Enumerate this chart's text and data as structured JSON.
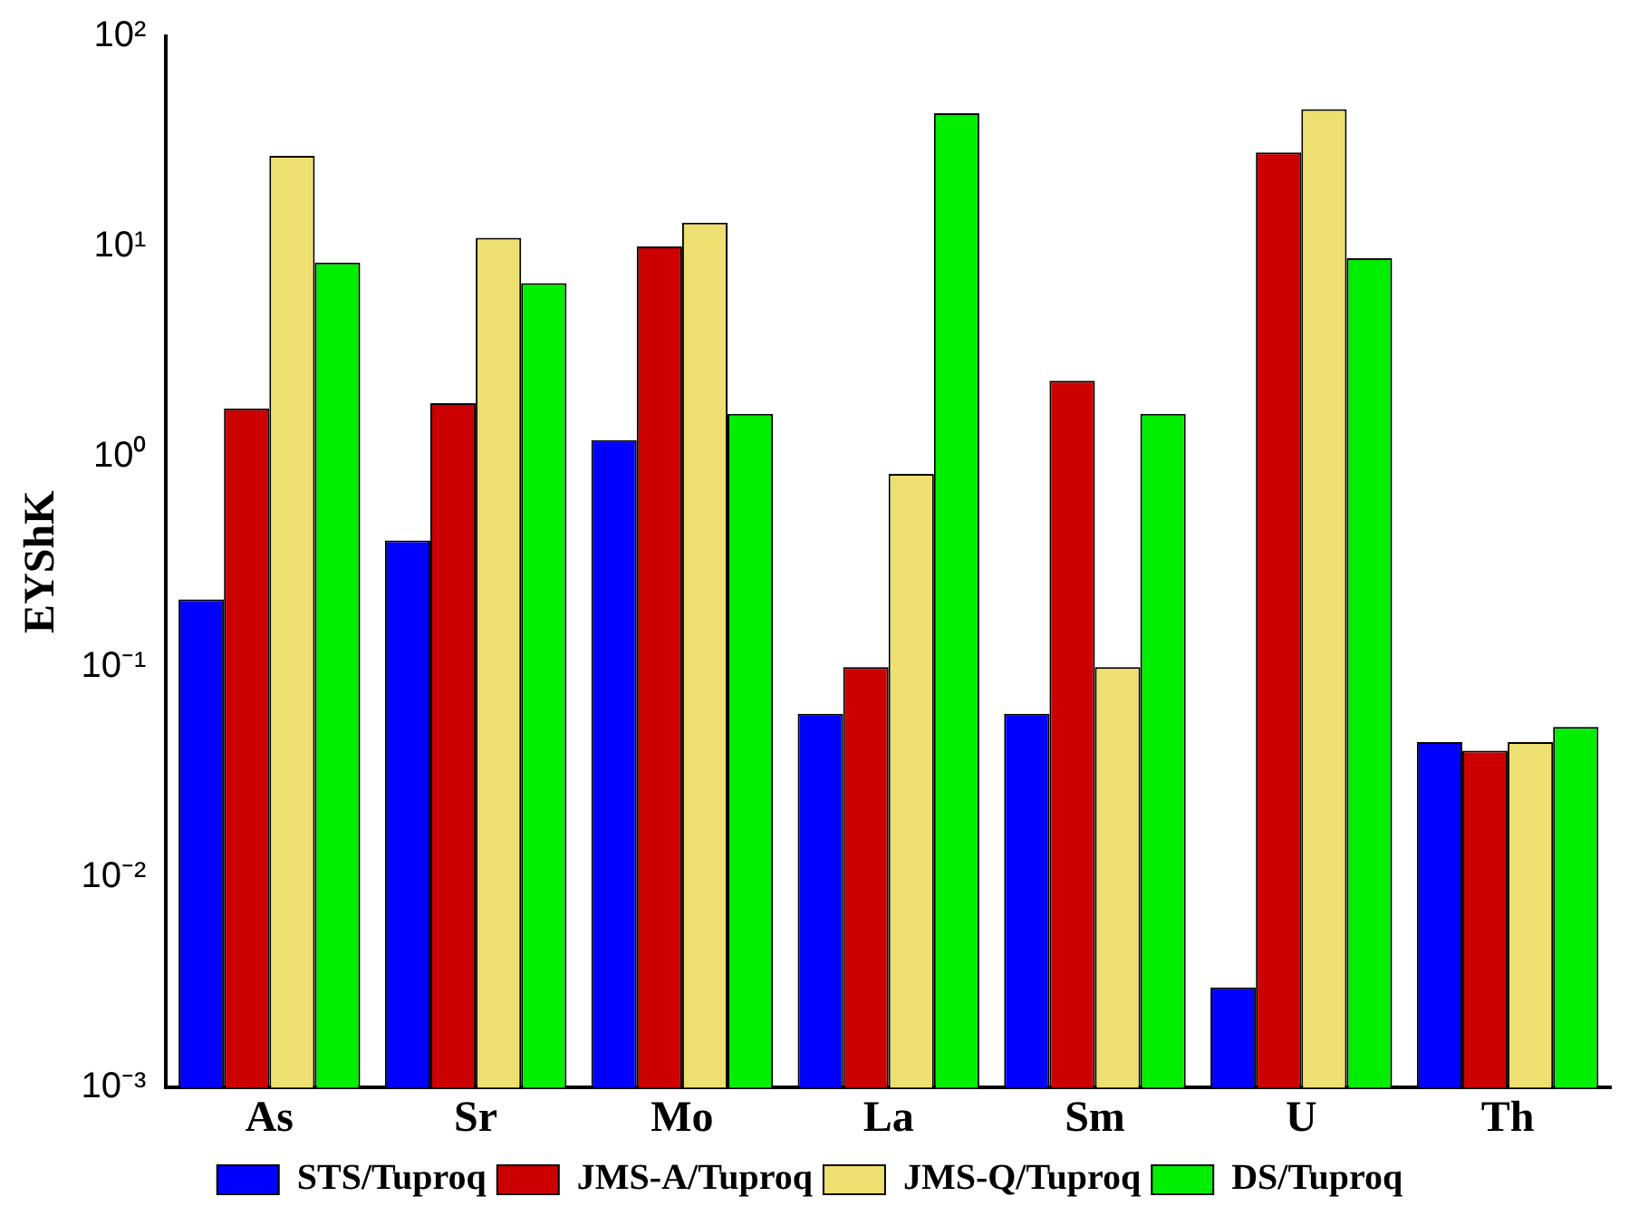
{
  "chart_data": {
    "type": "bar",
    "ylabel": "EYShK",
    "log": true,
    "grid": false,
    "legend": "bottom",
    "categories": [
      "As",
      "Sr",
      "Mo",
      "La",
      "Sm",
      "U",
      "Th"
    ],
    "ylim": [
      0.001,
      100
    ],
    "yticks": [
      {
        "value": 0.001,
        "label": "10⁻³"
      },
      {
        "value": 0.01,
        "label": "10⁻²"
      },
      {
        "value": 0.1,
        "label": "10⁻¹"
      },
      {
        "value": 1,
        "label": "10⁰"
      },
      {
        "value": 10,
        "label": "10¹"
      },
      {
        "value": 100,
        "label": "10²"
      }
    ],
    "series": [
      {
        "name": "STS/Tuproq",
        "color": "#0000ff",
        "values": [
          0.21,
          0.4,
          1.2,
          0.06,
          0.06,
          0.003,
          0.044
        ]
      },
      {
        "name": "JMS-A/Tuproq",
        "color": "#cc0000",
        "values": [
          1.7,
          1.8,
          10,
          0.1,
          2.3,
          28,
          0.04
        ]
      },
      {
        "name": "JMS-Q/Tuproq",
        "color": "#eee070",
        "values": [
          27,
          11,
          13,
          0.83,
          0.1,
          45,
          0.044
        ]
      },
      {
        "name": "DS/Tuproq",
        "color": "#00ee00",
        "values": [
          8.4,
          6.7,
          1.6,
          43,
          1.6,
          8.8,
          0.052
        ]
      }
    ]
  }
}
